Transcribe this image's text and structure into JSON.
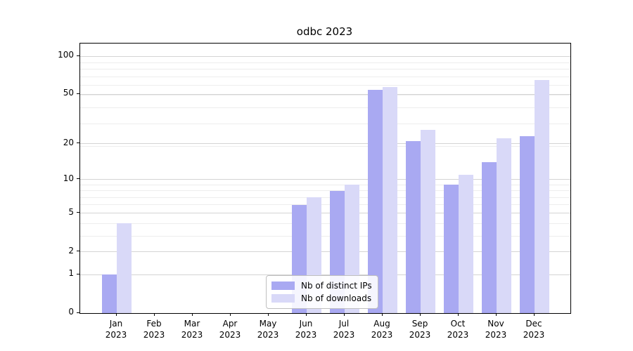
{
  "title": "odbc 2023",
  "chart_data": {
    "type": "bar",
    "title": "odbc 2023",
    "categories": [
      "Jan",
      "Feb",
      "Mar",
      "Apr",
      "May",
      "Jun",
      "Jul",
      "Aug",
      "Sep",
      "Oct",
      "Nov",
      "Dec"
    ],
    "year_label": "2023",
    "series": [
      {
        "name": "Nb of distinct IPs",
        "color": "#a9a9f2",
        "values": [
          1,
          0,
          0,
          0,
          0,
          6,
          8,
          54,
          21,
          9,
          14,
          23
        ]
      },
      {
        "name": "Nb of downloads",
        "color": "#d9d9f8",
        "values": [
          4,
          0,
          0,
          0,
          0,
          7,
          9,
          57,
          26,
          11,
          22,
          65
        ]
      }
    ],
    "yscale": "log1p",
    "yticks": [
      0,
      1,
      2,
      5,
      10,
      20,
      50,
      100
    ],
    "minor_grid_levels": [
      3,
      4,
      6,
      7,
      8,
      9,
      19,
      29,
      39,
      49,
      59,
      69,
      79,
      89
    ],
    "ylim": [
      0,
      126
    ],
    "grid": true,
    "legend_position": "lower-center",
    "axis_color": "#000000",
    "major_grid_color": "#d4d4d4",
    "minor_grid_color": "#ededed"
  }
}
